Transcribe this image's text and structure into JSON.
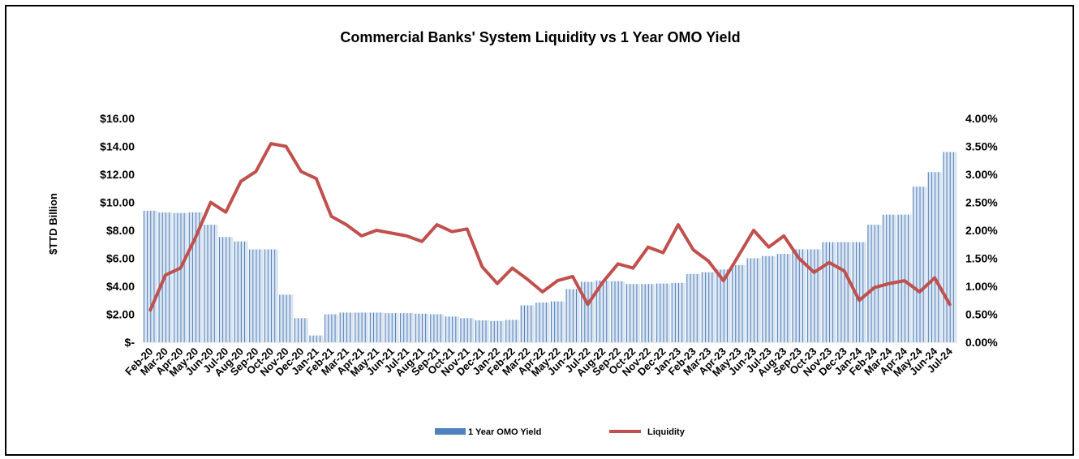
{
  "chart_data": {
    "type": "bar",
    "title": "Commercial Banks' System Liquidity vs 1 Year OMO Yield",
    "ylabel": "$TTD Billion",
    "ylim_left": [
      0,
      16
    ],
    "ylim_right": [
      0,
      0.04
    ],
    "left_ticks": [
      "$-",
      "$2.00",
      "$4.00",
      "$6.00",
      "$8.00",
      "$10.00",
      "$12.00",
      "$14.00",
      "$16.00"
    ],
    "right_ticks": [
      "0.00%",
      "0.50%",
      "1.00%",
      "1.50%",
      "2.00%",
      "2.50%",
      "3.00%",
      "3.50%",
      "4.00%"
    ],
    "categories": [
      "Feb-20",
      "Mar-20",
      "Apr-20",
      "May-20",
      "Jun-20",
      "Jul-20",
      "Aug-20",
      "Sep-20",
      "Oct-20",
      "Nov-20",
      "Dec-20",
      "Jan-21",
      "Feb-21",
      "Mar-21",
      "Apr-21",
      "May-21",
      "Jun-21",
      "Jul-21",
      "Aug-21",
      "Sep-21",
      "Oct-21",
      "Nov-21",
      "Dec-21",
      "Jan-22",
      "Feb-22",
      "Mar-22",
      "Apr-22",
      "May-22",
      "Jun-22",
      "Jul-22",
      "Aug-22",
      "Sep-22",
      "Oct-22",
      "Nov-22",
      "Dec-22",
      "Jan-23",
      "Feb-23",
      "Mar-23",
      "Apr-23",
      "May-23",
      "Jun-23",
      "Jul-23",
      "Aug-23",
      "Sep-23",
      "Oct-23",
      "Nov-23",
      "Dec-23",
      "Jan-24",
      "Feb-24",
      "Mar-24",
      "Apr-24",
      "May-24",
      "Jun-24",
      "Jul-24"
    ],
    "legend_position": "bottom",
    "series": [
      {
        "name": "1 Year OMO Yield",
        "type": "bar",
        "axis": "right",
        "color": "#4F81BD",
        "values": [
          2.35,
          2.32,
          2.31,
          2.32,
          2.1,
          1.88,
          1.8,
          1.66,
          1.66,
          0.85,
          0.43,
          0.12,
          0.5,
          0.53,
          0.53,
          0.53,
          0.52,
          0.52,
          0.51,
          0.5,
          0.46,
          0.43,
          0.39,
          0.38,
          0.4,
          0.66,
          0.71,
          0.73,
          0.95,
          1.08,
          1.1,
          1.09,
          1.04,
          1.04,
          1.05,
          1.06,
          1.22,
          1.25,
          1.3,
          1.38,
          1.5,
          1.54,
          1.58,
          1.66,
          1.66,
          1.79,
          1.79,
          1.79,
          2.1,
          2.28,
          2.28,
          2.78,
          3.04,
          3.4
        ]
      },
      {
        "name": "Liquidity",
        "type": "line",
        "axis": "left",
        "color": "#C0504D",
        "values": [
          2.3,
          4.8,
          5.3,
          7.5,
          10.0,
          9.3,
          11.5,
          12.2,
          14.2,
          14.0,
          12.2,
          11.7,
          9.0,
          8.4,
          7.6,
          8.0,
          7.8,
          7.6,
          7.2,
          8.4,
          7.9,
          8.1,
          5.4,
          4.2,
          5.3,
          4.5,
          3.6,
          4.4,
          4.7,
          2.7,
          4.3,
          5.6,
          5.3,
          6.8,
          6.4,
          8.4,
          6.6,
          5.8,
          4.4,
          6.2,
          8.0,
          6.8,
          7.6,
          6.0,
          5.0,
          5.7,
          5.1,
          3.0,
          3.9,
          4.2,
          4.4,
          3.6,
          4.6,
          2.7
        ]
      }
    ]
  }
}
